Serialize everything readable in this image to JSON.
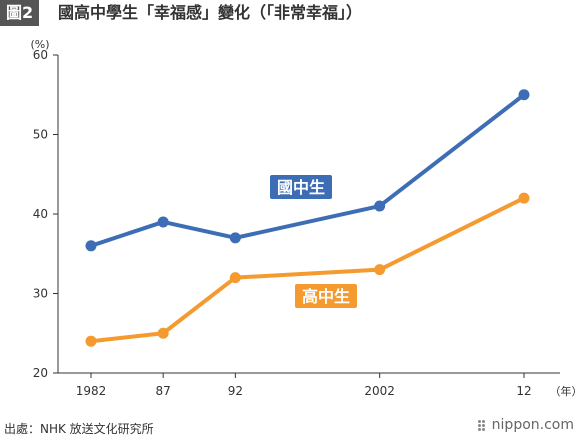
{
  "header": {
    "badge": "圖2",
    "title": "國高中學生「幸福感」變化（「非常幸福」）"
  },
  "footer": {
    "source": "出處：NHK 放送文化研究所",
    "brand": "nippon.com"
  },
  "chart_data": {
    "type": "line",
    "ylabel": "(%)",
    "xlabel": "（年）",
    "ylim": [
      20,
      60
    ],
    "yticks": [
      20,
      30,
      40,
      50,
      60
    ],
    "x": [
      "1982",
      "87",
      "92",
      "2002",
      "12"
    ],
    "x_years": [
      1982,
      1987,
      1992,
      2002,
      2012
    ],
    "grid": false,
    "series": [
      {
        "name": "國中生",
        "color": "#3d6db5",
        "values": [
          36,
          39,
          37,
          41,
          55
        ]
      },
      {
        "name": "高中生",
        "color": "#f49a2f",
        "values": [
          24,
          25,
          32,
          33,
          42
        ]
      }
    ]
  }
}
